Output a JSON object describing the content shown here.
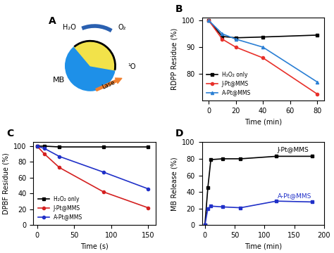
{
  "diagram": {
    "label": "A",
    "texts": {
      "water": "H₂O",
      "oxygen": "O₂",
      "particle": "MB",
      "laser": "Lase",
      "singlet": "¹O"
    }
  },
  "chart_data": [
    {
      "type": "line",
      "title": "B",
      "x_label": "Time (min)",
      "y_label": "RDPP Residue (%)",
      "x": [
        0,
        10,
        20,
        40,
        80
      ],
      "xlim": [
        -5,
        85
      ],
      "xticks": [
        0,
        20,
        40,
        60,
        80
      ],
      "ylim": [
        70,
        101
      ],
      "yticks": [
        80,
        90,
        100
      ],
      "legend": "lower left",
      "series": [
        {
          "name": "H₂O₂ only",
          "color": "#000000",
          "marker": "square",
          "values": [
            100,
            94,
            93.5,
            93.8,
            94.5
          ]
        },
        {
          "name": "J-Pt@MMS",
          "color": "#e8302a",
          "marker": "circle",
          "values": [
            100,
            93,
            90,
            86,
            72.5
          ]
        },
        {
          "name": "A-Pt@MMS",
          "color": "#2a7fd4",
          "marker": "triangle",
          "values": [
            100,
            95,
            93,
            90,
            77
          ]
        }
      ]
    },
    {
      "type": "line",
      "title": "C",
      "x_label": "Time (s)",
      "y_label": "DPBF Residue (%)",
      "x": [
        0,
        10,
        30,
        90,
        150
      ],
      "xlim": [
        -5,
        160
      ],
      "xticks": [
        0,
        50,
        100,
        150
      ],
      "ylim": [
        0,
        105
      ],
      "yticks": [
        0,
        20,
        40,
        60,
        80,
        100
      ],
      "legend": "lower left",
      "series": [
        {
          "name": "H₂O₂ only",
          "color": "#000000",
          "marker": "square",
          "values": [
            100,
            100,
            99,
            99,
            99
          ]
        },
        {
          "name": "J-Pt@MMS",
          "color": "#d42020",
          "marker": "circle",
          "values": [
            100,
            90,
            73,
            42,
            22
          ]
        },
        {
          "name": "A-Pt@MMS",
          "color": "#2030c8",
          "marker": "circle",
          "values": [
            100,
            97,
            87,
            67,
            46
          ]
        }
      ]
    },
    {
      "type": "line",
      "title": "D",
      "x_label": "Time (min)",
      "y_label": "MB Release (%)",
      "x": [
        0,
        5,
        10,
        30,
        60,
        120,
        180
      ],
      "xlim": [
        -5,
        200
      ],
      "xticks": [
        0,
        50,
        100,
        150,
        200
      ],
      "ylim": [
        0,
        100
      ],
      "yticks": [
        0,
        20,
        40,
        60,
        80,
        100
      ],
      "annotations": [
        "J-Pt@MMS",
        "A-Pt@MMS"
      ],
      "series": [
        {
          "name": "J-Pt@MMS",
          "color": "#000000",
          "marker": "square",
          "values": [
            0,
            45,
            79,
            80,
            80,
            83,
            83
          ]
        },
        {
          "name": "A-Pt@MMS",
          "color": "#2030c8",
          "marker": "square",
          "values": [
            0,
            20,
            23,
            22,
            21,
            29,
            28
          ]
        }
      ]
    }
  ]
}
